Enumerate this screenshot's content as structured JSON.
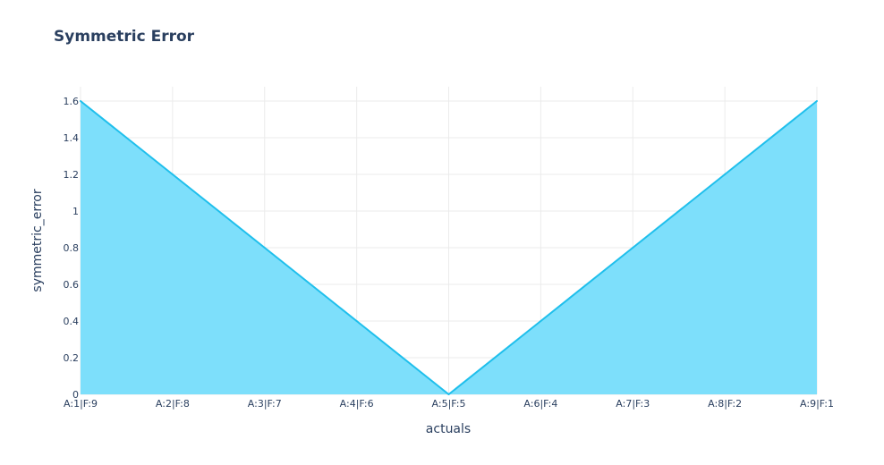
{
  "chart_data": {
    "type": "area",
    "title": "Symmetric Error",
    "xlabel": "actuals",
    "ylabel": "symmetric_error",
    "categories": [
      "A:1|F:9",
      "A:2|F:8",
      "A:3|F:7",
      "A:4|F:6",
      "A:5|F:5",
      "A:6|F:4",
      "A:7|F:3",
      "A:8|F:2",
      "A:9|F:1"
    ],
    "values": [
      1.6,
      1.2,
      0.8,
      0.4,
      0,
      0.4,
      0.8,
      1.2,
      1.6
    ],
    "yticks": [
      "0",
      "0.2",
      "0.4",
      "0.6",
      "0.8",
      "1",
      "1.2",
      "1.4",
      "1.6"
    ],
    "ylim": [
      0,
      1.6
    ],
    "grid": true,
    "colors": {
      "line": "#1fbfec",
      "fill": "#7ddffb",
      "grid": "#ebebeb",
      "text": "#2a3f5f"
    }
  }
}
